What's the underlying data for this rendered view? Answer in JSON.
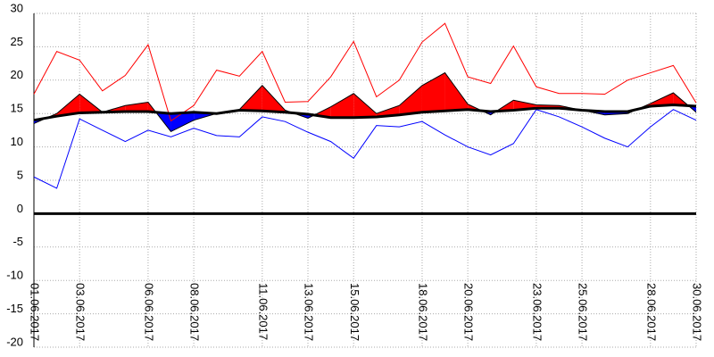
{
  "chart_data": {
    "type": "line",
    "categories": [
      "01.06.2017",
      null,
      "03.06.2017",
      null,
      null,
      "06.06.2017",
      null,
      "08.06.2017",
      null,
      null,
      "11.06.2017",
      null,
      "13.06.2017",
      null,
      "15.06.2017",
      null,
      null,
      "18.06.2017",
      null,
      "20.06.2017",
      null,
      null,
      "23.06.2017",
      null,
      "25.06.2017",
      null,
      null,
      "28.06.2017",
      null,
      "30.06.2017"
    ],
    "ylim": [
      -20,
      30
    ],
    "yticks": [
      30,
      25,
      20,
      15,
      10,
      5,
      0,
      -5,
      -10,
      -15,
      -20
    ],
    "grid": true,
    "fill_above": "#ff0000",
    "fill_below": "#0000ff",
    "series": [
      {
        "color": "#ff0000",
        "values": [
          17.9,
          24.3,
          23,
          18.4,
          20.7,
          25.3,
          13.9,
          16.2,
          21.5,
          20.6,
          24.3,
          16.7,
          16.8,
          20.5,
          25.8,
          17.5,
          20,
          25.7,
          28.5,
          20.5,
          19.5,
          25.1,
          19,
          18,
          18,
          17.9,
          20,
          21.1,
          22.2,
          16.6
        ]
      },
      {
        "color": "#0000ff",
        "values": [
          5.5,
          3.8,
          14.2,
          12.5,
          10.8,
          12.5,
          11.5,
          12.8,
          11.7,
          11.5,
          14.5,
          13.8,
          12.2,
          10.8,
          8.3,
          13.2,
          13,
          13.8,
          11.8,
          10,
          8.8,
          10.5,
          15.6,
          14.5,
          13,
          11.3,
          10,
          13,
          15.6,
          14
        ]
      },
      {
        "color": "#000000",
        "values": [
          13.5,
          15,
          17.9,
          15.2,
          16.2,
          16.7,
          12.3,
          14,
          15,
          15.6,
          19.2,
          15.5,
          14.3,
          16,
          18,
          15,
          16.2,
          19.2,
          21.1,
          16.4,
          14.8,
          17,
          16.3,
          16.2,
          15.5,
          14.8,
          15,
          16.5,
          18.1,
          15.2
        ]
      },
      {
        "color": "#000000",
        "values": [
          14,
          14.6,
          15.1,
          15.2,
          15.3,
          15.3,
          15,
          15.2,
          15,
          15.5,
          15.4,
          15.2,
          14.9,
          14.4,
          14.4,
          14.5,
          14.8,
          15.2,
          15.4,
          15.6,
          15.3,
          15.5,
          15.8,
          15.8,
          15.5,
          15.3,
          15.3,
          16.1,
          16.3,
          16.1
        ]
      }
    ]
  }
}
